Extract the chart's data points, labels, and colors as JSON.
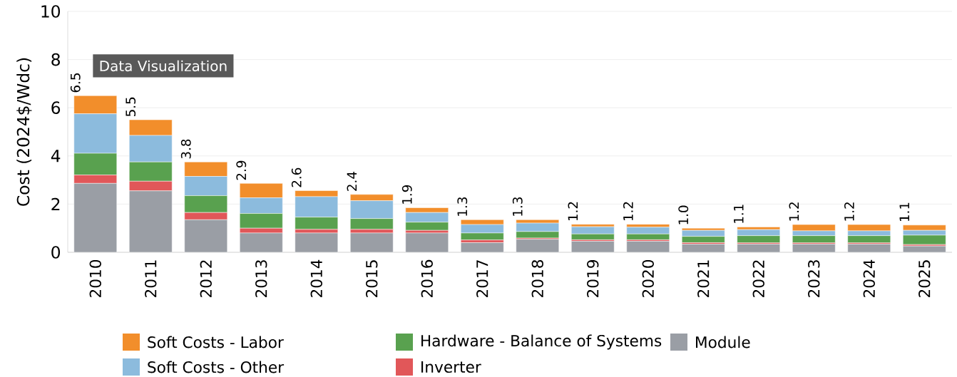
{
  "chart_data": {
    "type": "bar",
    "stacked": true,
    "ylabel": "Cost (2024$/Wdc)",
    "categories": [
      "2010",
      "2011",
      "2012",
      "2013",
      "2014",
      "2015",
      "2016",
      "2017",
      "2018",
      "2019",
      "2020",
      "2021",
      "2022",
      "2023",
      "2024",
      "2025"
    ],
    "series": [
      {
        "name": "Module",
        "color": "#9a9ea5",
        "values": [
          2.86,
          2.55,
          1.35,
          0.8,
          0.8,
          0.8,
          0.8,
          0.4,
          0.54,
          0.46,
          0.46,
          0.34,
          0.34,
          0.34,
          0.34,
          0.26
        ]
      },
      {
        "name": "Inverter",
        "color": "#e15759",
        "values": [
          0.35,
          0.4,
          0.3,
          0.2,
          0.15,
          0.15,
          0.11,
          0.11,
          0.05,
          0.06,
          0.06,
          0.06,
          0.05,
          0.05,
          0.05,
          0.06
        ]
      },
      {
        "name": "Hardware - Balance of Systems",
        "color": "#59a14f",
        "values": [
          0.9,
          0.8,
          0.7,
          0.61,
          0.51,
          0.45,
          0.34,
          0.29,
          0.27,
          0.24,
          0.24,
          0.26,
          0.3,
          0.3,
          0.3,
          0.39
        ]
      },
      {
        "name": "Soft Costs - Other",
        "color": "#8cbbdd",
        "values": [
          1.64,
          1.1,
          0.8,
          0.65,
          0.85,
          0.74,
          0.4,
          0.35,
          0.35,
          0.3,
          0.28,
          0.25,
          0.25,
          0.2,
          0.2,
          0.2
        ]
      },
      {
        "name": "Soft Costs - Labor",
        "color": "#f28e2b",
        "values": [
          0.75,
          0.65,
          0.6,
          0.6,
          0.25,
          0.26,
          0.2,
          0.2,
          0.14,
          0.1,
          0.12,
          0.09,
          0.11,
          0.26,
          0.26,
          0.22
        ]
      }
    ],
    "totals": [
      "6.5",
      "5.5",
      "3.8",
      "2.9",
      "2.6",
      "2.4",
      "1.9",
      "1.3",
      "1.3",
      "1.2",
      "1.2",
      "1.0",
      "1.1",
      "1.2",
      "1.2",
      "1.1"
    ],
    "ylim": [
      0,
      10
    ],
    "yticks": [
      0,
      2,
      4,
      6,
      8,
      10
    ],
    "grid": "y",
    "legend": "bottom",
    "annotations": [
      "Data Visualization"
    ]
  }
}
